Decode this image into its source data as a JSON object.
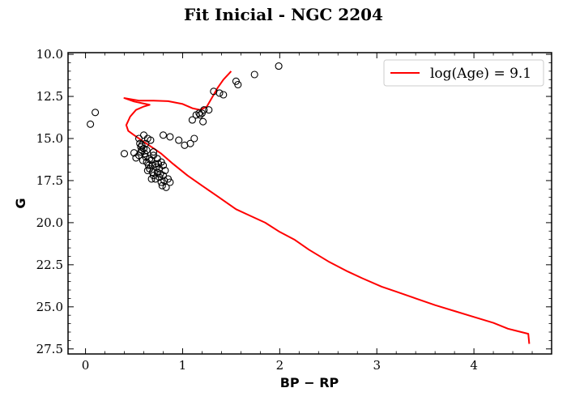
{
  "chart_data": {
    "type": "scatter",
    "title": "Fit Inicial - NGC 2204",
    "xlabel": "BP − RP",
    "ylabel": "G",
    "xlim": [
      -0.18,
      4.8
    ],
    "ylim": [
      27.8,
      9.9
    ],
    "y_inverted": true,
    "x_ticks": [
      0,
      1,
      2,
      3,
      4
    ],
    "x_tick_labels": [
      "0",
      "1",
      "2",
      "3",
      "4"
    ],
    "y_ticks": [
      10.0,
      12.5,
      15.0,
      17.5,
      20.0,
      22.5,
      25.0,
      27.5
    ],
    "y_tick_labels": [
      "10.0",
      "12.5",
      "15.0",
      "17.5",
      "20.0",
      "22.5",
      "25.0",
      "27.5"
    ],
    "grid": false,
    "legend": {
      "position": "top-right",
      "entries": [
        "log(Age) = 9.1"
      ]
    },
    "series": [
      {
        "name": "log(Age) = 9.1",
        "kind": "line",
        "color": "#ff0000",
        "points": [
          [
            4.57,
            27.2
          ],
          [
            4.56,
            26.6
          ],
          [
            4.35,
            26.3
          ],
          [
            4.2,
            25.95
          ],
          [
            4.0,
            25.6
          ],
          [
            3.8,
            25.25
          ],
          [
            3.6,
            24.9
          ],
          [
            3.4,
            24.5
          ],
          [
            3.2,
            24.1
          ],
          [
            3.05,
            23.8
          ],
          [
            2.85,
            23.3
          ],
          [
            2.7,
            22.9
          ],
          [
            2.5,
            22.3
          ],
          [
            2.3,
            21.6
          ],
          [
            2.15,
            21.0
          ],
          [
            2.0,
            20.55
          ],
          [
            1.85,
            20.0
          ],
          [
            1.7,
            19.6
          ],
          [
            1.55,
            19.2
          ],
          [
            1.35,
            18.4
          ],
          [
            1.2,
            17.8
          ],
          [
            1.05,
            17.2
          ],
          [
            0.9,
            16.5
          ],
          [
            0.78,
            15.9
          ],
          [
            0.68,
            15.5
          ],
          [
            0.6,
            15.2
          ],
          [
            0.5,
            14.8
          ],
          [
            0.44,
            14.55
          ],
          [
            0.42,
            14.2
          ],
          [
            0.46,
            13.7
          ],
          [
            0.52,
            13.3
          ],
          [
            0.6,
            13.1
          ],
          [
            0.66,
            13.0
          ],
          [
            0.62,
            12.95
          ],
          [
            0.5,
            12.8
          ],
          [
            0.4,
            12.6
          ],
          [
            0.55,
            12.75
          ],
          [
            0.7,
            12.75
          ],
          [
            0.85,
            12.78
          ],
          [
            1.0,
            12.95
          ],
          [
            1.1,
            13.2
          ],
          [
            1.18,
            13.3
          ],
          [
            1.25,
            13.1
          ],
          [
            1.3,
            12.6
          ],
          [
            1.36,
            12.0
          ],
          [
            1.42,
            11.5
          ],
          [
            1.5,
            11.0
          ]
        ]
      },
      {
        "name": "",
        "kind": "scatter",
        "color": "#000000",
        "points": [
          [
            0.05,
            14.15
          ],
          [
            0.1,
            13.45
          ],
          [
            0.4,
            15.9
          ],
          [
            0.5,
            15.85
          ],
          [
            0.52,
            16.15
          ],
          [
            0.55,
            15.0
          ],
          [
            0.56,
            15.3
          ],
          [
            0.57,
            15.5
          ],
          [
            0.58,
            15.7
          ],
          [
            0.6,
            14.8
          ],
          [
            0.6,
            15.6
          ],
          [
            0.61,
            15.9
          ],
          [
            0.62,
            16.1
          ],
          [
            0.63,
            16.4
          ],
          [
            0.64,
            15.0
          ],
          [
            0.65,
            16.6
          ],
          [
            0.66,
            16.8
          ],
          [
            0.67,
            15.1
          ],
          [
            0.68,
            16.3
          ],
          [
            0.69,
            17.0
          ],
          [
            0.7,
            17.2
          ],
          [
            0.7,
            16.0
          ],
          [
            0.72,
            17.4
          ],
          [
            0.73,
            16.7
          ],
          [
            0.74,
            17.0
          ],
          [
            0.75,
            16.5
          ],
          [
            0.76,
            17.3
          ],
          [
            0.77,
            17.1
          ],
          [
            0.78,
            17.6
          ],
          [
            0.79,
            17.8
          ],
          [
            0.8,
            17.2
          ],
          [
            0.81,
            17.5
          ],
          [
            0.82,
            16.9
          ],
          [
            0.83,
            17.9
          ],
          [
            0.85,
            17.4
          ],
          [
            0.87,
            17.6
          ],
          [
            0.55,
            16.0
          ],
          [
            0.58,
            15.4
          ],
          [
            0.59,
            16.3
          ],
          [
            0.62,
            15.3
          ],
          [
            0.64,
            16.9
          ],
          [
            0.66,
            16.2
          ],
          [
            0.68,
            17.4
          ],
          [
            0.7,
            15.8
          ],
          [
            0.72,
            16.5
          ],
          [
            0.74,
            16.2
          ],
          [
            0.76,
            16.8
          ],
          [
            0.78,
            16.4
          ],
          [
            0.8,
            16.6
          ],
          [
            0.57,
            15.8
          ],
          [
            0.63,
            15.7
          ],
          [
            0.69,
            16.6
          ],
          [
            0.8,
            14.8
          ],
          [
            0.87,
            14.9
          ],
          [
            0.96,
            15.1
          ],
          [
            1.02,
            15.4
          ],
          [
            1.08,
            15.3
          ],
          [
            1.12,
            15.0
          ],
          [
            1.1,
            13.9
          ],
          [
            1.14,
            13.6
          ],
          [
            1.17,
            13.5
          ],
          [
            1.2,
            13.5
          ],
          [
            1.22,
            13.3
          ],
          [
            1.18,
            13.6
          ],
          [
            1.27,
            13.3
          ],
          [
            1.21,
            14.0
          ],
          [
            1.32,
            12.2
          ],
          [
            1.38,
            12.3
          ],
          [
            1.42,
            12.4
          ],
          [
            1.55,
            11.6
          ],
          [
            1.57,
            11.8
          ],
          [
            1.74,
            11.2
          ],
          [
            1.99,
            10.7
          ]
        ]
      }
    ]
  }
}
